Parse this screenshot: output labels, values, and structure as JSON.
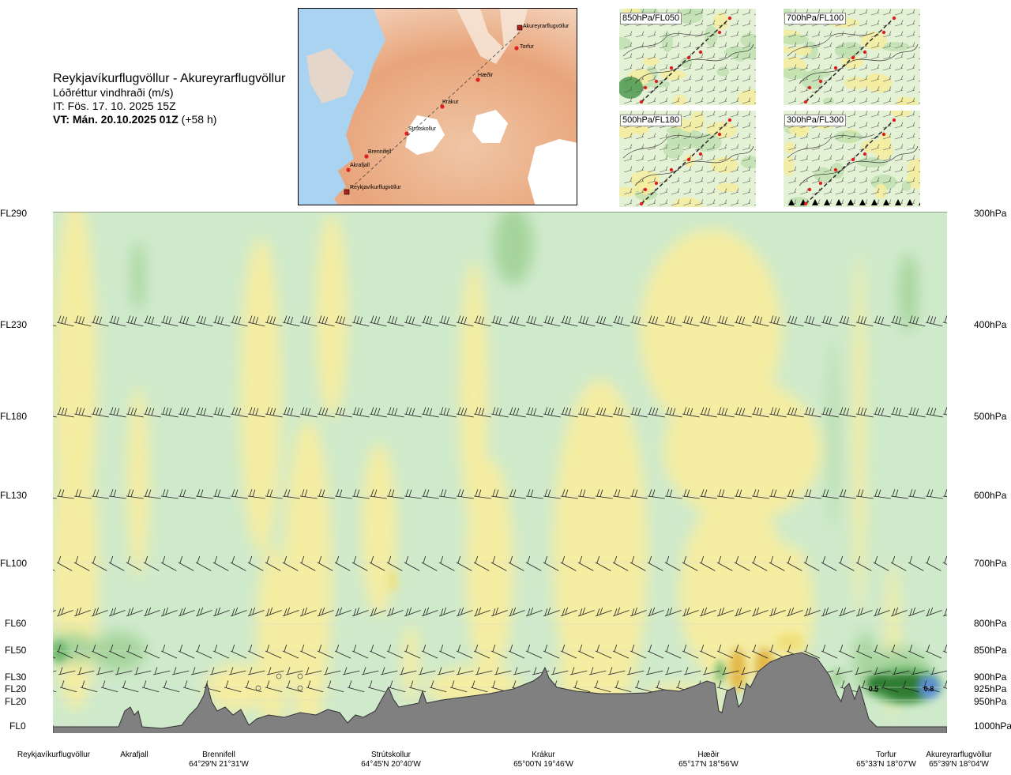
{
  "header": {
    "route": "Reykjavíkurflugvöllur - Akureyrarflugvöllur",
    "parameter": "Lóðréttur vindhraði (m/s)",
    "issue_time": "IT: Fös. 17. 10. 2025 15Z",
    "valid_time_bold": "VT: Mán. 20.10.2025 01Z",
    "valid_time_offset": "(+58 h)"
  },
  "route_map": {
    "waypoints": [
      {
        "name": "Akureyrarflugvöllur"
      },
      {
        "name": "Torfur"
      },
      {
        "name": "Hæðir"
      },
      {
        "name": "Krákur"
      },
      {
        "name": "Strútskollur"
      },
      {
        "name": "Brennifell"
      },
      {
        "name": "Akrafjall"
      },
      {
        "name": "Reykjavíkurflugvöllur"
      }
    ]
  },
  "mini_maps": [
    {
      "label": "850hPa/FL050"
    },
    {
      "label": "700hPa/FL100"
    },
    {
      "label": "500hPa/FL180"
    },
    {
      "label": "300hPa/FL300"
    }
  ],
  "chart_data": {
    "type": "heatmap",
    "title": "Lóðréttur vindhraði (m/s)",
    "x_axis": {
      "locations": [
        {
          "name": "Reykjavíkurflugvöllur",
          "coord": ""
        },
        {
          "name": "Akrafjall",
          "coord": ""
        },
        {
          "name": "Brennifell",
          "coord": "64°29'N 21°31'W"
        },
        {
          "name": "Strútskollur",
          "coord": "64°45'N 20°40'W"
        },
        {
          "name": "Krákur",
          "coord": "65°00'N 19°46'W"
        },
        {
          "name": "Hæðir",
          "coord": "65°17'N 18°56'W"
        },
        {
          "name": "Torfur",
          "coord": "65°33'N 18°07'W"
        },
        {
          "name": "Akureyrarflugvöllur",
          "coord": "65°39'N 18°04'W"
        }
      ]
    },
    "y_axis_left_flight_levels": [
      "FL290",
      "FL230",
      "FL180",
      "FL130",
      "FL100",
      "FL60",
      "FL50",
      "FL30",
      "FL20",
      "FL20",
      "FL0"
    ],
    "y_axis_right_pressure": [
      "300hPa",
      "400hPa",
      "500hPa",
      "600hPa",
      "700hPa",
      "800hPa",
      "850hPa",
      "900hPa",
      "925hPa",
      "950hPa",
      "1000hPa"
    ],
    "contour_labels": [
      "0.5",
      "0.8"
    ],
    "colors": {
      "strong_sink": "#2f7d33",
      "moderate_sink": "#6fb86f",
      "weak_sink": "#a6d49c",
      "very_weak_sink": "#cfeacb",
      "neutral": "#fbfbe0",
      "weak_rise": "#f5eda2",
      "moderate_rise": "#efe07a",
      "strong_rise": "#e2b84a",
      "terrain": "#808080",
      "core_blue": "#5d8fd0"
    }
  }
}
